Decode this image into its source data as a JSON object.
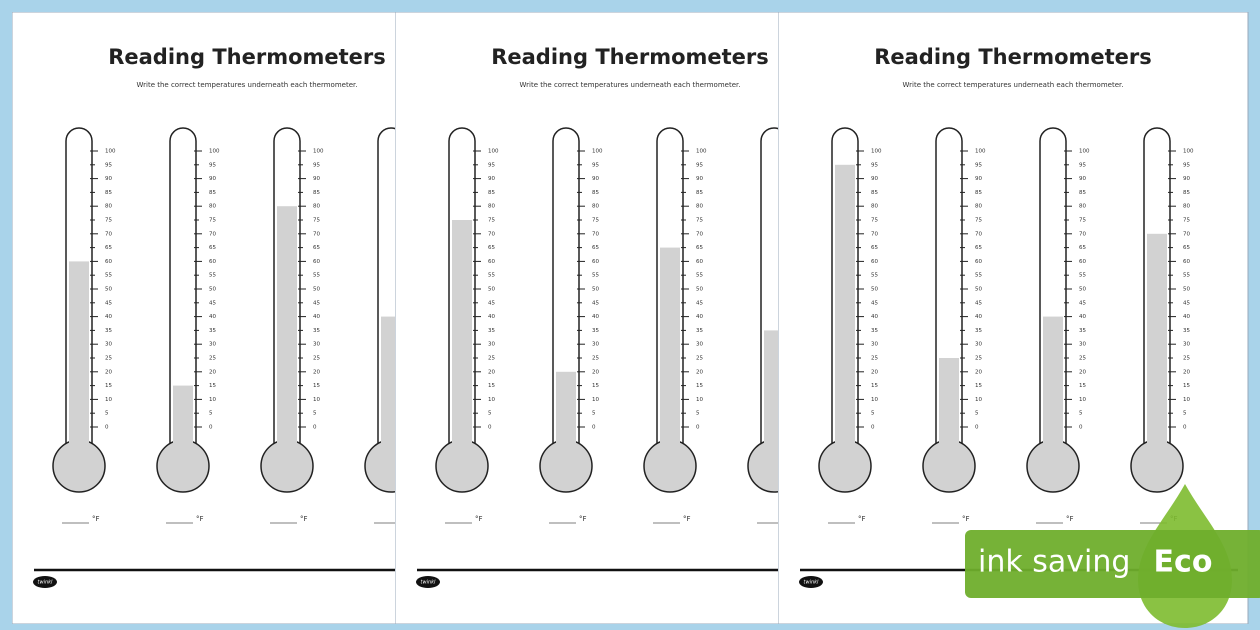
{
  "pages": [
    {
      "title": "Reading Thermometers",
      "instruction": "Write the correct temperatures underneath each thermometer.",
      "thermometers": [
        60,
        15,
        80,
        40
      ]
    },
    {
      "title": "Reading Thermometers",
      "instruction": "Write the correct temperatures underneath each thermometer.",
      "thermometers": [
        75,
        20,
        65,
        35
      ]
    },
    {
      "title": "Reading Thermometers",
      "instruction": "Write the correct temperatures underneath each thermometer.",
      "thermometers": [
        95,
        25,
        40,
        70
      ]
    }
  ],
  "scale": {
    "ticks": [
      0,
      5,
      10,
      15,
      20,
      25,
      30,
      35,
      40,
      45,
      50,
      55,
      60,
      65,
      70,
      75,
      80,
      85,
      90,
      95,
      100
    ]
  },
  "unit": "°F",
  "brand": "twinkl",
  "badge": {
    "text": "ink saving",
    "label": "Eco"
  }
}
